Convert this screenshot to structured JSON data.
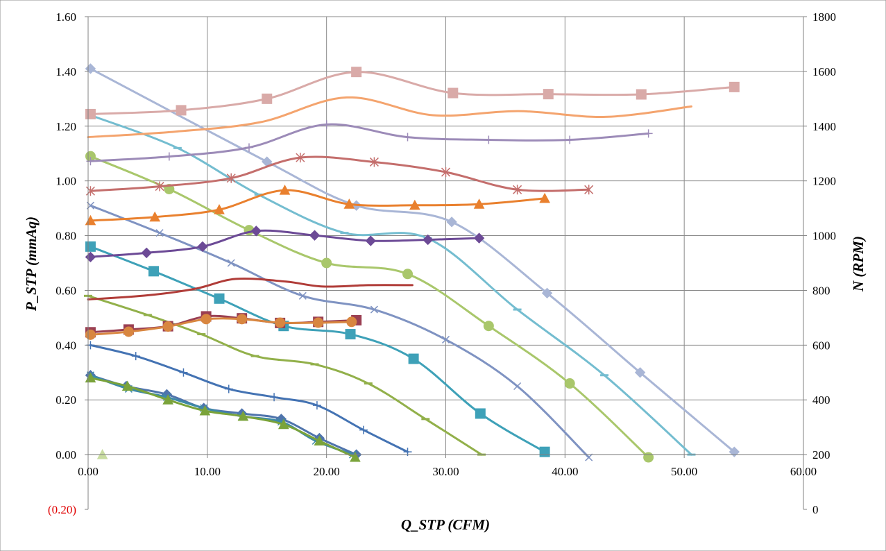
{
  "chart_data": {
    "type": "line",
    "title": "",
    "xlabel": "Q_STP (CFM)",
    "ylabel": "P_STP (mmAq)",
    "y2label": "N (RPM)",
    "xlim": [
      0,
      60
    ],
    "ylim": [
      -0.2,
      1.6
    ],
    "y2lim": [
      0,
      1800
    ],
    "x_ticks": [
      "0.00",
      "10.00",
      "20.00",
      "30.00",
      "40.00",
      "50.00",
      "60.00"
    ],
    "y_ticks": [
      "(0.20)",
      "0.00",
      "0.20",
      "0.40",
      "0.60",
      "0.80",
      "1.00",
      "1.20",
      "1.40",
      "1.60"
    ],
    "y2_ticks": [
      "0",
      "200",
      "400",
      "600",
      "800",
      "1000",
      "1200",
      "1400",
      "1600",
      "1800"
    ],
    "grid": true,
    "legend": "none",
    "series": [
      {
        "axis": "left",
        "color": "#a9b6d6",
        "marker": "diamond",
        "points": [
          [
            0.2,
            1.41
          ],
          [
            15.0,
            1.07
          ],
          [
            22.5,
            0.91
          ],
          [
            30.5,
            0.85
          ],
          [
            38.5,
            0.59
          ],
          [
            46.3,
            0.3
          ],
          [
            54.2,
            0.01
          ]
        ]
      },
      {
        "axis": "left",
        "color": "#74bdd0",
        "marker": "dash",
        "points": [
          [
            0.2,
            1.24
          ],
          [
            7.5,
            1.12
          ],
          [
            14.3,
            0.95
          ],
          [
            21.5,
            0.81
          ],
          [
            28.5,
            0.79
          ],
          [
            36.0,
            0.53
          ],
          [
            43.3,
            0.29
          ],
          [
            50.6,
            0.0
          ]
        ]
      },
      {
        "axis": "left",
        "color": "#a9c76b",
        "marker": "circle",
        "points": [
          [
            0.2,
            1.09
          ],
          [
            6.8,
            0.97
          ],
          [
            13.5,
            0.82
          ],
          [
            20.0,
            0.7
          ],
          [
            26.8,
            0.66
          ],
          [
            33.6,
            0.47
          ],
          [
            40.4,
            0.26
          ],
          [
            47.0,
            -0.01
          ]
        ]
      },
      {
        "axis": "left",
        "color": "#7f93c2",
        "marker": "x",
        "points": [
          [
            0.2,
            0.91
          ],
          [
            6.0,
            0.81
          ],
          [
            12.0,
            0.7
          ],
          [
            18.0,
            0.58
          ],
          [
            24.0,
            0.53
          ],
          [
            30.0,
            0.42
          ],
          [
            36.0,
            0.25
          ],
          [
            42.0,
            -0.01
          ]
        ]
      },
      {
        "axis": "left",
        "color": "#3ea1b8",
        "marker": "square",
        "points": [
          [
            0.2,
            0.76
          ],
          [
            5.5,
            0.67
          ],
          [
            11.0,
            0.57
          ],
          [
            16.4,
            0.47
          ],
          [
            22.0,
            0.44
          ],
          [
            27.3,
            0.35
          ],
          [
            32.9,
            0.15
          ],
          [
            38.3,
            0.01
          ]
        ]
      },
      {
        "axis": "left",
        "color": "#92b04a",
        "marker": "dash",
        "points": [
          [
            0.0,
            0.58
          ],
          [
            5.0,
            0.51
          ],
          [
            9.5,
            0.44
          ],
          [
            14.0,
            0.36
          ],
          [
            19.0,
            0.33
          ],
          [
            23.5,
            0.26
          ],
          [
            28.3,
            0.13
          ],
          [
            33.0,
            0.0
          ]
        ]
      },
      {
        "axis": "left",
        "color": "#4473b3",
        "marker": "plus",
        "points": [
          [
            0.2,
            0.4
          ],
          [
            4.0,
            0.36
          ],
          [
            8.0,
            0.3
          ],
          [
            11.8,
            0.24
          ],
          [
            15.6,
            0.21
          ],
          [
            19.2,
            0.18
          ],
          [
            23.1,
            0.09
          ],
          [
            26.8,
            0.01
          ]
        ]
      },
      {
        "axis": "left",
        "color": "#4f74ac",
        "marker": "diamond",
        "points": [
          [
            0.2,
            0.29
          ],
          [
            3.2,
            0.25
          ],
          [
            6.6,
            0.22
          ],
          [
            9.7,
            0.17
          ],
          [
            12.9,
            0.15
          ],
          [
            16.2,
            0.13
          ],
          [
            19.4,
            0.06
          ],
          [
            22.5,
            0.0
          ]
        ]
      },
      {
        "axis": "left",
        "color": "#3e8aa6",
        "marker": "x",
        "points": [
          [
            0.2,
            0.29
          ],
          [
            3.4,
            0.24
          ],
          [
            6.6,
            0.21
          ],
          [
            9.7,
            0.17
          ],
          [
            12.9,
            0.14
          ],
          [
            16.2,
            0.12
          ],
          [
            19.1,
            0.05
          ],
          [
            22.2,
            0.0
          ]
        ]
      },
      {
        "axis": "left",
        "color": "#7aa33a",
        "marker": "triangle",
        "points": [
          [
            0.2,
            0.28
          ],
          [
            3.3,
            0.25
          ],
          [
            6.7,
            0.2
          ],
          [
            9.8,
            0.16
          ],
          [
            13.0,
            0.14
          ],
          [
            16.4,
            0.11
          ],
          [
            19.4,
            0.05
          ],
          [
            22.4,
            -0.01
          ]
        ]
      },
      {
        "axis": "left",
        "color": "#c8dca0",
        "marker": "triangle",
        "points": [
          [
            1.2,
            0.0
          ]
        ]
      },
      {
        "axis": "right",
        "color": "#d9aaa8",
        "marker": "square",
        "points": [
          [
            0.2,
            1444
          ],
          [
            7.8,
            1458
          ],
          [
            15.0,
            1500
          ],
          [
            22.5,
            1598
          ],
          [
            30.6,
            1521
          ],
          [
            38.6,
            1517
          ],
          [
            46.4,
            1516
          ],
          [
            54.2,
            1543
          ]
        ]
      },
      {
        "axis": "right",
        "color": "#f4a46e",
        "marker": "none",
        "points": [
          [
            0.0,
            1360
          ],
          [
            7.3,
            1380
          ],
          [
            14.5,
            1415
          ],
          [
            21.7,
            1505
          ],
          [
            28.9,
            1440
          ],
          [
            36.1,
            1455
          ],
          [
            43.4,
            1434
          ],
          [
            50.6,
            1472
          ]
        ]
      },
      {
        "axis": "right",
        "color": "#9c8bb8",
        "marker": "plus",
        "points": [
          [
            0.2,
            1272
          ],
          [
            6.8,
            1289
          ],
          [
            13.5,
            1322
          ],
          [
            20.0,
            1406
          ],
          [
            26.8,
            1360
          ],
          [
            33.6,
            1350
          ],
          [
            40.4,
            1350
          ],
          [
            47.0,
            1373
          ]
        ]
      },
      {
        "axis": "right",
        "color": "#c46e6c",
        "marker": "asterisk",
        "points": [
          [
            0.2,
            1163
          ],
          [
            6.0,
            1180
          ],
          [
            12.0,
            1210
          ],
          [
            17.8,
            1285
          ],
          [
            24.0,
            1269
          ],
          [
            30.0,
            1232
          ],
          [
            36.0,
            1168
          ],
          [
            42.0,
            1168
          ]
        ]
      },
      {
        "axis": "right",
        "color": "#e9802e",
        "marker": "triangle",
        "points": [
          [
            0.2,
            1055
          ],
          [
            5.6,
            1068
          ],
          [
            11.0,
            1095
          ],
          [
            16.5,
            1166
          ],
          [
            21.9,
            1115
          ],
          [
            27.4,
            1111
          ],
          [
            32.8,
            1115
          ],
          [
            38.3,
            1136
          ]
        ]
      },
      {
        "axis": "right",
        "color": "#6c4a96",
        "marker": "diamond",
        "points": [
          [
            0.2,
            922
          ],
          [
            4.9,
            937
          ],
          [
            9.6,
            960
          ],
          [
            14.1,
            1017
          ],
          [
            19.0,
            1001
          ],
          [
            23.7,
            981
          ],
          [
            28.5,
            985
          ],
          [
            32.8,
            991
          ]
        ]
      },
      {
        "axis": "right",
        "color": "#b03c38",
        "marker": "none",
        "points": [
          [
            0.0,
            767
          ],
          [
            5.0,
            782
          ],
          [
            9.0,
            806
          ],
          [
            12.4,
            842
          ],
          [
            16.6,
            832
          ],
          [
            19.7,
            814
          ],
          [
            23.5,
            819
          ],
          [
            27.2,
            819
          ]
        ]
      },
      {
        "axis": "right",
        "color": "#9a3f52",
        "marker": "square",
        "points": [
          [
            0.2,
            647
          ],
          [
            3.4,
            657
          ],
          [
            6.7,
            669
          ],
          [
            9.9,
            705
          ],
          [
            12.9,
            698
          ],
          [
            16.1,
            681
          ],
          [
            19.3,
            685
          ],
          [
            22.5,
            691
          ]
        ]
      },
      {
        "axis": "right",
        "color": "#d88640",
        "marker": "circle",
        "points": [
          [
            0.2,
            638
          ],
          [
            3.4,
            649
          ],
          [
            6.7,
            668
          ],
          [
            9.9,
            695
          ],
          [
            12.9,
            695
          ],
          [
            16.1,
            682
          ],
          [
            19.3,
            682
          ],
          [
            22.1,
            685
          ]
        ]
      }
    ]
  }
}
